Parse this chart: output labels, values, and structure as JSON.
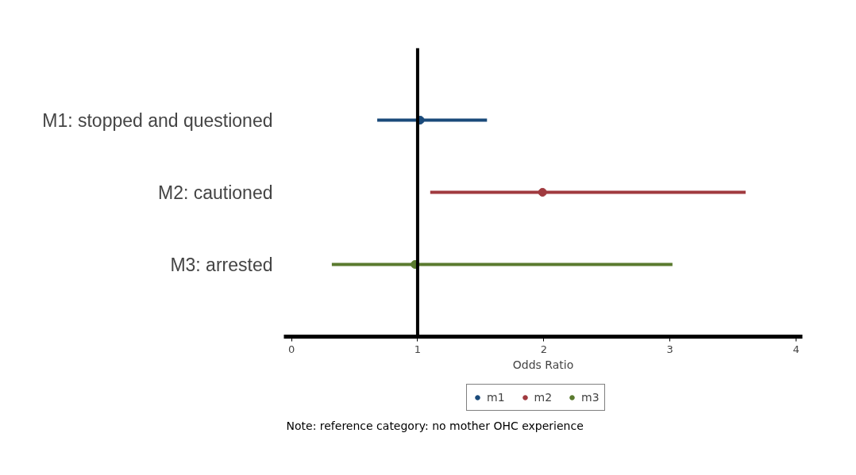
{
  "chart_data": {
    "type": "scatter",
    "orientation": "horizontal",
    "categories": [
      "M1: stopped and questioned",
      "M2: cautioned",
      "M3: arrested"
    ],
    "series": [
      {
        "name": "m1",
        "color": "#1a4a7a",
        "values": [
          1.02,
          null,
          null
        ],
        "errors": [
          [
            0.68,
            1.55
          ],
          null,
          null
        ]
      },
      {
        "name": "m2",
        "color": "#a03a3f",
        "values": [
          null,
          1.99,
          null
        ],
        "errors": [
          null,
          [
            1.1,
            3.6
          ],
          null
        ]
      },
      {
        "name": "m3",
        "color": "#5a7a2e",
        "values": [
          null,
          null,
          0.98
        ],
        "errors": [
          null,
          null,
          [
            0.32,
            3.02
          ]
        ]
      }
    ],
    "xlabel": "Odds Ratio",
    "xlim": [
      -0.06,
      4.05
    ],
    "xticks": [
      0,
      1,
      2,
      3,
      4
    ],
    "ref_lines": [
      {
        "axis": "x",
        "value": 1,
        "label": null,
        "color": "#000000"
      }
    ],
    "marker": "circle",
    "grid": false,
    "legend": "bottom",
    "annotations": [
      "Note: reference category: no mother OHC experience"
    ]
  }
}
